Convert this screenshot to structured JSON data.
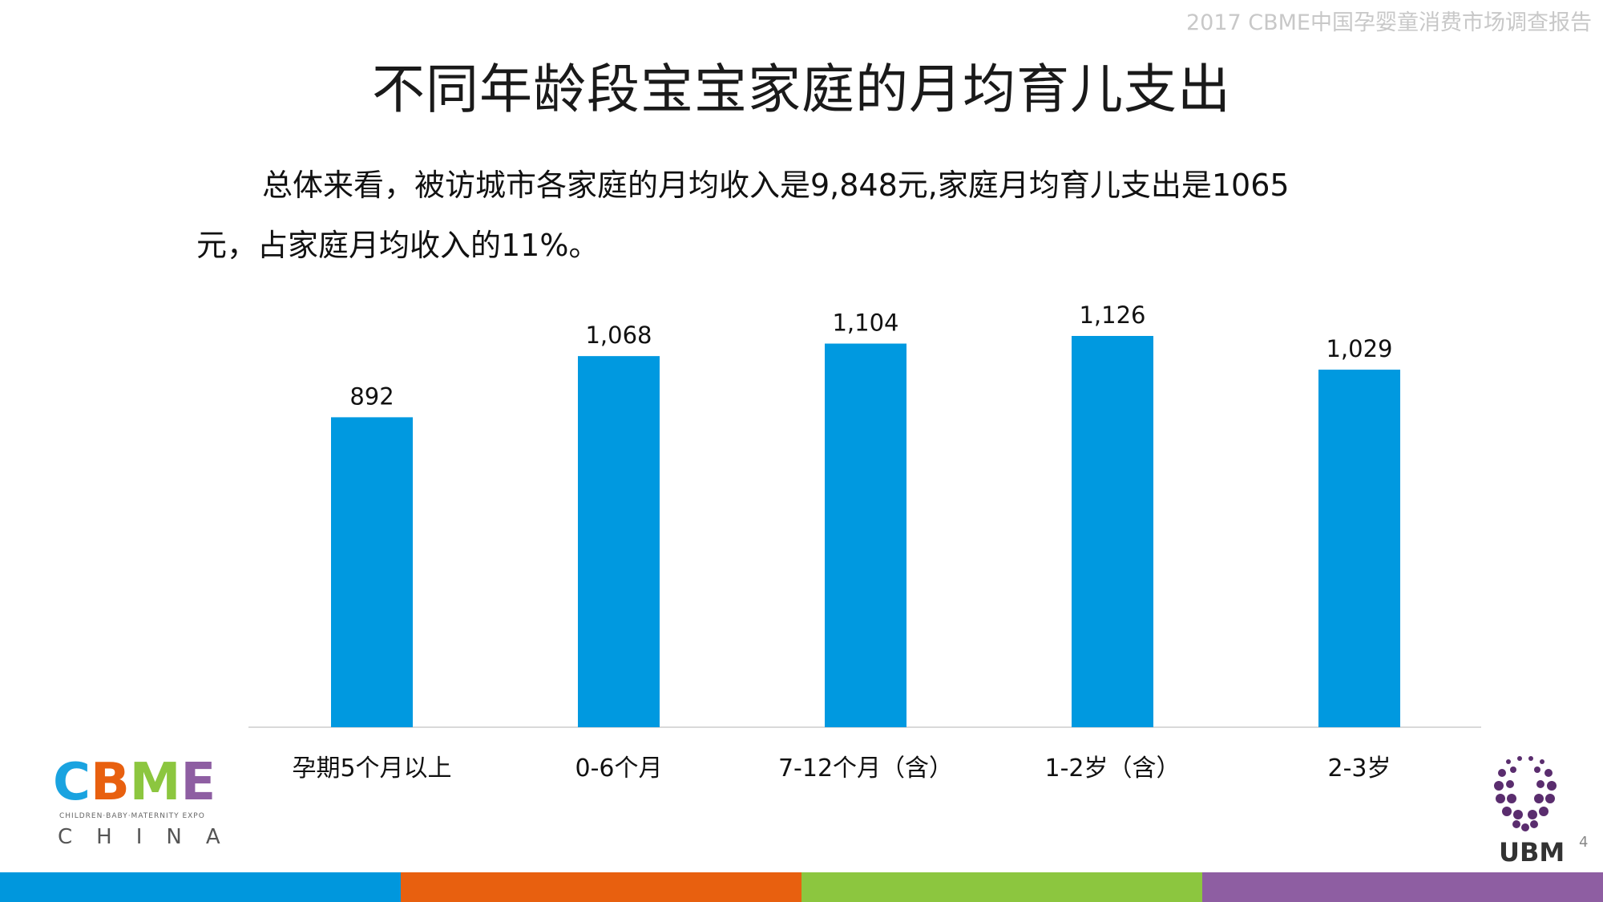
{
  "header": {
    "report_title": "2017 CBME中国孕婴童消费市场调查报告"
  },
  "slide": {
    "title": "不同年龄段宝宝家庭的月均育儿支出",
    "summary_line1": "总体来看，被访城市各家庭的月均收入是9,848元,家庭月均育儿支出是1065",
    "summary_line2": "元，占家庭月均收入的11%。",
    "page_number": "4"
  },
  "logos": {
    "cbme_letters": [
      "C",
      "B",
      "M",
      "E"
    ],
    "cbme_tagline": "CHILDREN·BABY·MATERNITY EXPO",
    "cbme_china": "CHINA",
    "ubm_text": "UBM"
  },
  "colors": {
    "bar": "#0099e0",
    "axis": "#d9d9d9",
    "stripe": [
      "#0097dd",
      "#e8600f",
      "#8cc63f",
      "#8e5ea2"
    ],
    "cbme_letters": [
      "#1aa3e0",
      "#e8600f",
      "#8cc63f",
      "#8e5ea2"
    ]
  },
  "chart_data": {
    "type": "bar",
    "categories": [
      "孕期5个月以上",
      "0-6个月",
      "7-12个月（含）",
      "1-2岁（含）",
      "2-3岁"
    ],
    "values": [
      892,
      1068,
      1104,
      1126,
      1029
    ],
    "value_labels": [
      "892",
      "1,068",
      "1,104",
      "1,126",
      "1,029"
    ],
    "ylim": [
      0,
      1126
    ],
    "grid": false,
    "legend": "none"
  }
}
